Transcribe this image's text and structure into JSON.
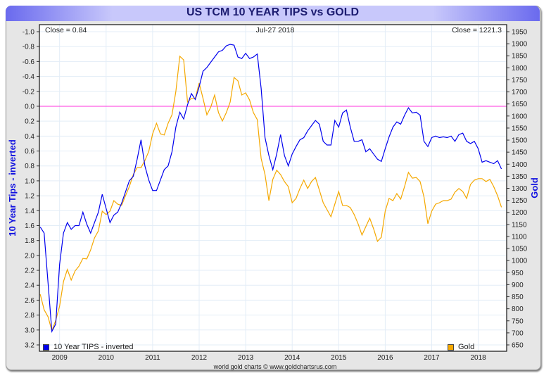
{
  "chart_data": {
    "type": "line",
    "title": "US TCM 10 YEAR TIPS vs GOLD",
    "ylabel_left": "10 Year Tips - inverted",
    "ylabel_right": "Gold",
    "header_left": "Close = 0.84",
    "header_center": "Jul-27  2018",
    "header_right": "Close = 1221.3",
    "credit": "world gold charts © www.goldchartsrus.com",
    "x_ticks": [
      "2009",
      "2010",
      "2011",
      "2012",
      "2013",
      "2014",
      "2015",
      "2016",
      "2017",
      "2018"
    ],
    "y_left": {
      "range": [
        -1.0,
        3.2
      ],
      "inverted": true,
      "ticks": [
        "-1.0",
        "-0.8",
        "-0.6",
        "-0.4",
        "-0.2",
        "0.0",
        "0.2",
        "0.4",
        "0.6",
        "0.8",
        "1.0",
        "1.2",
        "1.4",
        "1.6",
        "1.8",
        "2.0",
        "2.2",
        "2.4",
        "2.6",
        "2.8",
        "3.0",
        "3.2"
      ]
    },
    "y_right": {
      "range": [
        650,
        1950
      ],
      "ticks": [
        "1950",
        "1900",
        "1850",
        "1800",
        "1750",
        "1700",
        "1650",
        "1600",
        "1550",
        "1500",
        "1450",
        "1400",
        "1350",
        "1300",
        "1250",
        "1200",
        "1150",
        "1100",
        "1050",
        "1000",
        "950",
        "900",
        "850",
        "800",
        "750",
        "700",
        "650"
      ]
    },
    "reference_line": {
      "value": 0.0,
      "axis": "left",
      "color": "#ff33dd"
    },
    "grid": true,
    "legend_placement": "bottom",
    "dates": [
      "2008-08",
      "2008-09",
      "2008-10",
      "2008-11",
      "2008-12",
      "2009-01",
      "2009-02",
      "2009-03",
      "2009-04",
      "2009-05",
      "2009-06",
      "2009-07",
      "2009-08",
      "2009-09",
      "2009-10",
      "2009-11",
      "2009-12",
      "2010-01",
      "2010-02",
      "2010-03",
      "2010-04",
      "2010-05",
      "2010-06",
      "2010-07",
      "2010-08",
      "2010-09",
      "2010-10",
      "2010-11",
      "2010-12",
      "2011-01",
      "2011-02",
      "2011-03",
      "2011-04",
      "2011-05",
      "2011-06",
      "2011-07",
      "2011-08",
      "2011-09",
      "2011-10",
      "2011-11",
      "2011-12",
      "2012-01",
      "2012-02",
      "2012-03",
      "2012-04",
      "2012-05",
      "2012-06",
      "2012-07",
      "2012-08",
      "2012-09",
      "2012-10",
      "2012-11",
      "2012-12",
      "2013-01",
      "2013-02",
      "2013-03",
      "2013-04",
      "2013-05",
      "2013-06",
      "2013-07",
      "2013-08",
      "2013-09",
      "2013-10",
      "2013-11",
      "2013-12",
      "2014-01",
      "2014-02",
      "2014-03",
      "2014-04",
      "2014-05",
      "2014-06",
      "2014-07",
      "2014-08",
      "2014-09",
      "2014-10",
      "2014-11",
      "2014-12",
      "2015-01",
      "2015-02",
      "2015-03",
      "2015-04",
      "2015-05",
      "2015-06",
      "2015-07",
      "2015-08",
      "2015-09",
      "2015-10",
      "2015-11",
      "2015-12",
      "2016-01",
      "2016-02",
      "2016-03",
      "2016-04",
      "2016-05",
      "2016-06",
      "2016-07",
      "2016-08",
      "2016-09",
      "2016-10",
      "2016-11",
      "2016-12",
      "2017-01",
      "2017-02",
      "2017-03",
      "2017-04",
      "2017-05",
      "2017-06",
      "2017-07",
      "2017-08",
      "2017-09",
      "2017-10",
      "2017-11",
      "2017-12",
      "2018-01",
      "2018-02",
      "2018-03",
      "2018-04",
      "2018-05",
      "2018-06",
      "2018-07"
    ],
    "series": [
      {
        "name": "10 Year TIPS - inverted",
        "axis": "left",
        "color": "#0000ee",
        "values": [
          1.62,
          1.7,
          2.36,
          3.02,
          2.92,
          2.12,
          1.7,
          1.56,
          1.65,
          1.6,
          1.6,
          1.42,
          1.58,
          1.7,
          1.56,
          1.42,
          1.18,
          1.37,
          1.56,
          1.46,
          1.42,
          1.3,
          1.15,
          1.0,
          0.94,
          0.71,
          0.45,
          0.8,
          0.99,
          1.13,
          1.13,
          0.99,
          0.85,
          0.8,
          0.61,
          0.28,
          0.08,
          0.17,
          -0.02,
          -0.17,
          -0.09,
          -0.26,
          -0.47,
          -0.52,
          -0.59,
          -0.66,
          -0.73,
          -0.75,
          -0.81,
          -0.83,
          -0.82,
          -0.66,
          -0.64,
          -0.71,
          -0.64,
          -0.66,
          -0.7,
          -0.24,
          0.42,
          0.66,
          0.85,
          0.64,
          0.38,
          0.66,
          0.8,
          0.64,
          0.54,
          0.45,
          0.42,
          0.33,
          0.26,
          0.19,
          0.24,
          0.47,
          0.52,
          0.52,
          0.19,
          0.28,
          0.09,
          0.05,
          0.28,
          0.47,
          0.47,
          0.45,
          0.61,
          0.57,
          0.64,
          0.71,
          0.74,
          0.57,
          0.41,
          0.28,
          0.21,
          0.24,
          0.12,
          0.02,
          0.09,
          0.08,
          0.12,
          0.47,
          0.54,
          0.42,
          0.4,
          0.42,
          0.41,
          0.42,
          0.4,
          0.47,
          0.38,
          0.36,
          0.47,
          0.5,
          0.47,
          0.57,
          0.75,
          0.73,
          0.75,
          0.77,
          0.73,
          0.84
        ]
      },
      {
        "name": "Gold",
        "axis": "right",
        "color": "#f5a800",
        "values": [
          860,
          796,
          767,
          709,
          752,
          811,
          913,
          963,
          919,
          957,
          977,
          1009,
          1007,
          1044,
          1094,
          1123,
          1205,
          1191,
          1205,
          1249,
          1234,
          1229,
          1269,
          1307,
          1357,
          1386,
          1386,
          1415,
          1453,
          1526,
          1570,
          1526,
          1521,
          1570,
          1605,
          1702,
          1848,
          1833,
          1658,
          1673,
          1673,
          1737,
          1673,
          1605,
          1637,
          1687,
          1614,
          1579,
          1614,
          1658,
          1760,
          1746,
          1687,
          1696,
          1667,
          1614,
          1585,
          1424,
          1357,
          1249,
          1337,
          1375,
          1357,
          1328,
          1307,
          1240,
          1258,
          1299,
          1334,
          1299,
          1328,
          1345,
          1293,
          1240,
          1211,
          1182,
          1234,
          1287,
          1229,
          1229,
          1220,
          1191,
          1153,
          1106,
          1141,
          1176,
          1132,
          1080,
          1097,
          1205,
          1258,
          1249,
          1278,
          1255,
          1307,
          1366,
          1342,
          1345,
          1328,
          1264,
          1153,
          1205,
          1234,
          1240,
          1249,
          1249,
          1255,
          1284,
          1299,
          1287,
          1258,
          1316,
          1334,
          1340,
          1340,
          1328,
          1337,
          1307,
          1269,
          1221.3
        ]
      }
    ]
  }
}
